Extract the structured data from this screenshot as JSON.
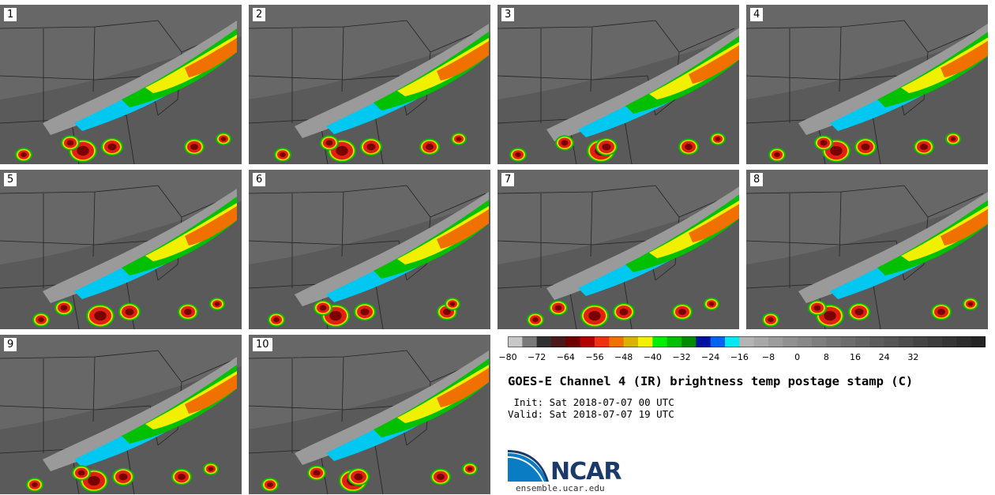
{
  "panels": [
    {
      "label": "1"
    },
    {
      "label": "2"
    },
    {
      "label": "3"
    },
    {
      "label": "4"
    },
    {
      "label": "5"
    },
    {
      "label": "6"
    },
    {
      "label": "7"
    },
    {
      "label": "8"
    },
    {
      "label": "9"
    },
    {
      "label": "10"
    }
  ],
  "colorbar": {
    "colors": [
      "#c8c8c8",
      "#7a7a7a",
      "#303030",
      "#4a1a1a",
      "#6e0000",
      "#b40000",
      "#f03010",
      "#f07000",
      "#d8b400",
      "#f0f000",
      "#00f000",
      "#00c000",
      "#008c00",
      "#0010a0",
      "#0064f0",
      "#00e8f0",
      "#b4b4b4",
      "#a8a8a8",
      "#9c9c9c",
      "#909090",
      "#888888",
      "#7e7e7e",
      "#747474",
      "#6c6c6c",
      "#646464",
      "#5c5c5c",
      "#545454",
      "#4c4c4c",
      "#444444",
      "#3c3c3c",
      "#343434",
      "#2c2c2c",
      "#242424"
    ],
    "tick_labels": [
      "−80",
      "−72",
      "−64",
      "−56",
      "−48",
      "−40",
      "−32",
      "−24",
      "−16",
      "−8",
      "0",
      "8",
      "16",
      "24",
      "32"
    ]
  },
  "title": "GOES-E Channel 4 (IR) brightness temp postage stamp (C)",
  "init_line": " Init: Sat 2018-07-07 00 UTC",
  "valid_line": "Valid: Sat 2018-07-07 19 UTC",
  "logo_text": "NCAR",
  "website": "ensemble.ucar.edu"
}
